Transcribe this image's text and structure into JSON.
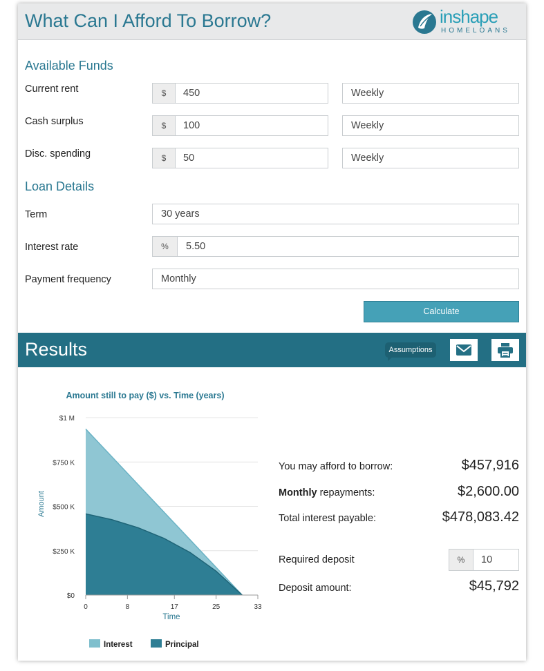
{
  "header": {
    "title": "What Can I Afford To Borrow?",
    "logo_text_top": "inshape",
    "logo_text_bottom": "HOMELOANS"
  },
  "available_funds": {
    "section_title": "Available Funds",
    "rows": [
      {
        "label": "Current rent",
        "currency": "$",
        "value": "450",
        "frequency": "Weekly"
      },
      {
        "label": "Cash surplus",
        "currency": "$",
        "value": "100",
        "frequency": "Weekly"
      },
      {
        "label": "Disc. spending",
        "currency": "$",
        "value": "50",
        "frequency": "Weekly"
      }
    ]
  },
  "loan_details": {
    "section_title": "Loan Details",
    "term_label": "Term",
    "term_value": "30 years",
    "rate_label": "Interest rate",
    "rate_unit": "%",
    "rate_value": "5.50",
    "frequency_label": "Payment frequency",
    "frequency_value": "Monthly",
    "calculate_label": "Calculate"
  },
  "results": {
    "title": "Results",
    "assumptions_label": "Assumptions",
    "borrow_label": "You may afford to borrow:",
    "borrow_value": "$457,916",
    "repayments_bold": "Monthly",
    "repayments_label": "repayments:",
    "repayments_value": "$2,600.00",
    "interest_label": "Total interest payable:",
    "interest_value": "$478,083.42",
    "deposit_label": "Required deposit",
    "deposit_unit": "%",
    "deposit_value": "10",
    "deposit_amount_label": "Deposit amount:",
    "deposit_amount_value": "$45,792"
  },
  "colors": {
    "accent": "#2a7891",
    "results_bar": "#236f84",
    "button": "#45a1b7",
    "interest_area": "#8fc6d3",
    "principal_area": "#2e7e94"
  },
  "icons": {
    "email": "envelope-icon",
    "print": "printer-icon"
  },
  "chart_data": {
    "type": "area",
    "title": "Amount still to pay ($) vs. Time (years)",
    "xlabel": "Time",
    "ylabel": "Amount",
    "x_ticks": [
      "0",
      "8",
      "17",
      "25",
      "33"
    ],
    "y_ticks": [
      "$0",
      "$250 K",
      "$500 K",
      "$750 K",
      "$1 M"
    ],
    "xlim": [
      0,
      33
    ],
    "ylim": [
      0,
      1000000
    ],
    "x": [
      0,
      5,
      10,
      15,
      20,
      25,
      30
    ],
    "series": [
      {
        "name": "Interest",
        "values": [
          936000,
          780000,
          624000,
          468000,
          312000,
          156000,
          0
        ]
      },
      {
        "name": "Principal",
        "values": [
          457916,
          425000,
          380000,
          320000,
          240000,
          135000,
          0
        ]
      }
    ],
    "legend_position": "bottom",
    "grid": true
  }
}
